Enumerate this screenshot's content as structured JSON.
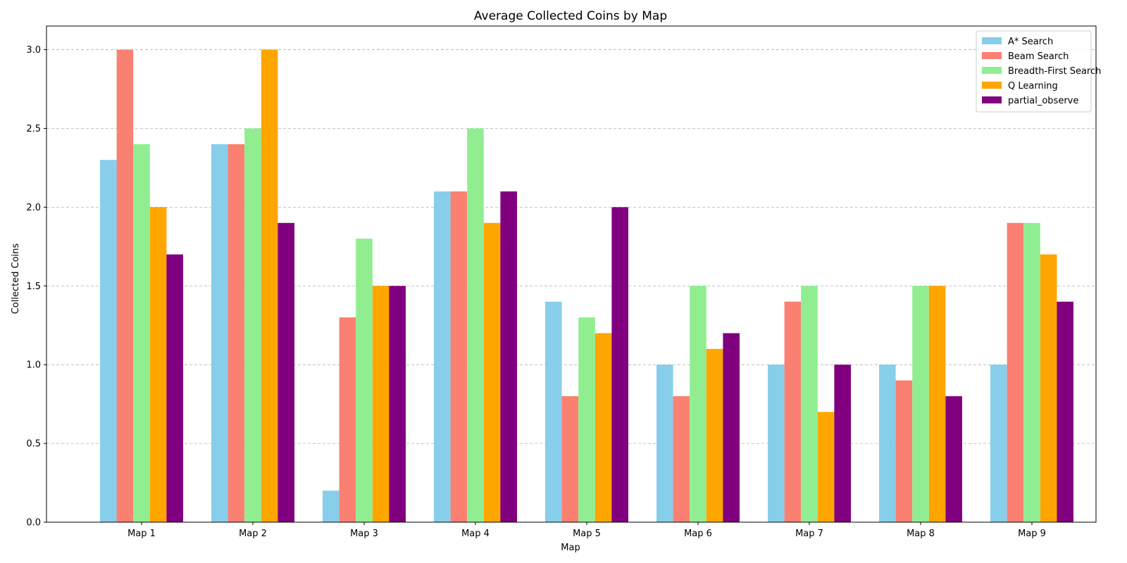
{
  "chart_data": {
    "type": "bar",
    "title": "Average Collected Coins by Map",
    "xlabel": "Map",
    "ylabel": "Collected Coins",
    "categories": [
      "Map 1",
      "Map 2",
      "Map 3",
      "Map 4",
      "Map 5",
      "Map 6",
      "Map 7",
      "Map 8",
      "Map 9"
    ],
    "ylim": [
      0,
      3.15
    ],
    "yticks": [
      0.0,
      0.5,
      1.0,
      1.5,
      2.0,
      2.5,
      3.0
    ],
    "ytick_labels": [
      "0.0",
      "0.5",
      "1.0",
      "1.5",
      "2.0",
      "2.5",
      "3.0"
    ],
    "grid": "y",
    "legend_position": "top-right",
    "series": [
      {
        "name": "A* Search",
        "color": "#87ceeb",
        "values": [
          2.3,
          2.4,
          0.2,
          2.1,
          1.4,
          1.0,
          1.0,
          1.0,
          1.0
        ]
      },
      {
        "name": "Beam Search",
        "color": "#fa8072",
        "values": [
          3.0,
          2.4,
          1.3,
          2.1,
          0.8,
          0.8,
          1.4,
          0.9,
          1.9
        ]
      },
      {
        "name": "Breadth-First Search",
        "color": "#90ee90",
        "values": [
          2.4,
          2.5,
          1.8,
          2.5,
          1.3,
          1.5,
          1.5,
          1.5,
          1.9
        ]
      },
      {
        "name": "Q Learning",
        "color": "#ffa500",
        "values": [
          2.0,
          3.0,
          1.5,
          1.9,
          1.2,
          1.1,
          0.7,
          1.5,
          1.7
        ]
      },
      {
        "name": "partial_observe",
        "color": "#800080",
        "values": [
          1.7,
          1.9,
          1.5,
          2.1,
          2.0,
          1.2,
          1.0,
          0.8,
          1.4
        ]
      }
    ]
  }
}
